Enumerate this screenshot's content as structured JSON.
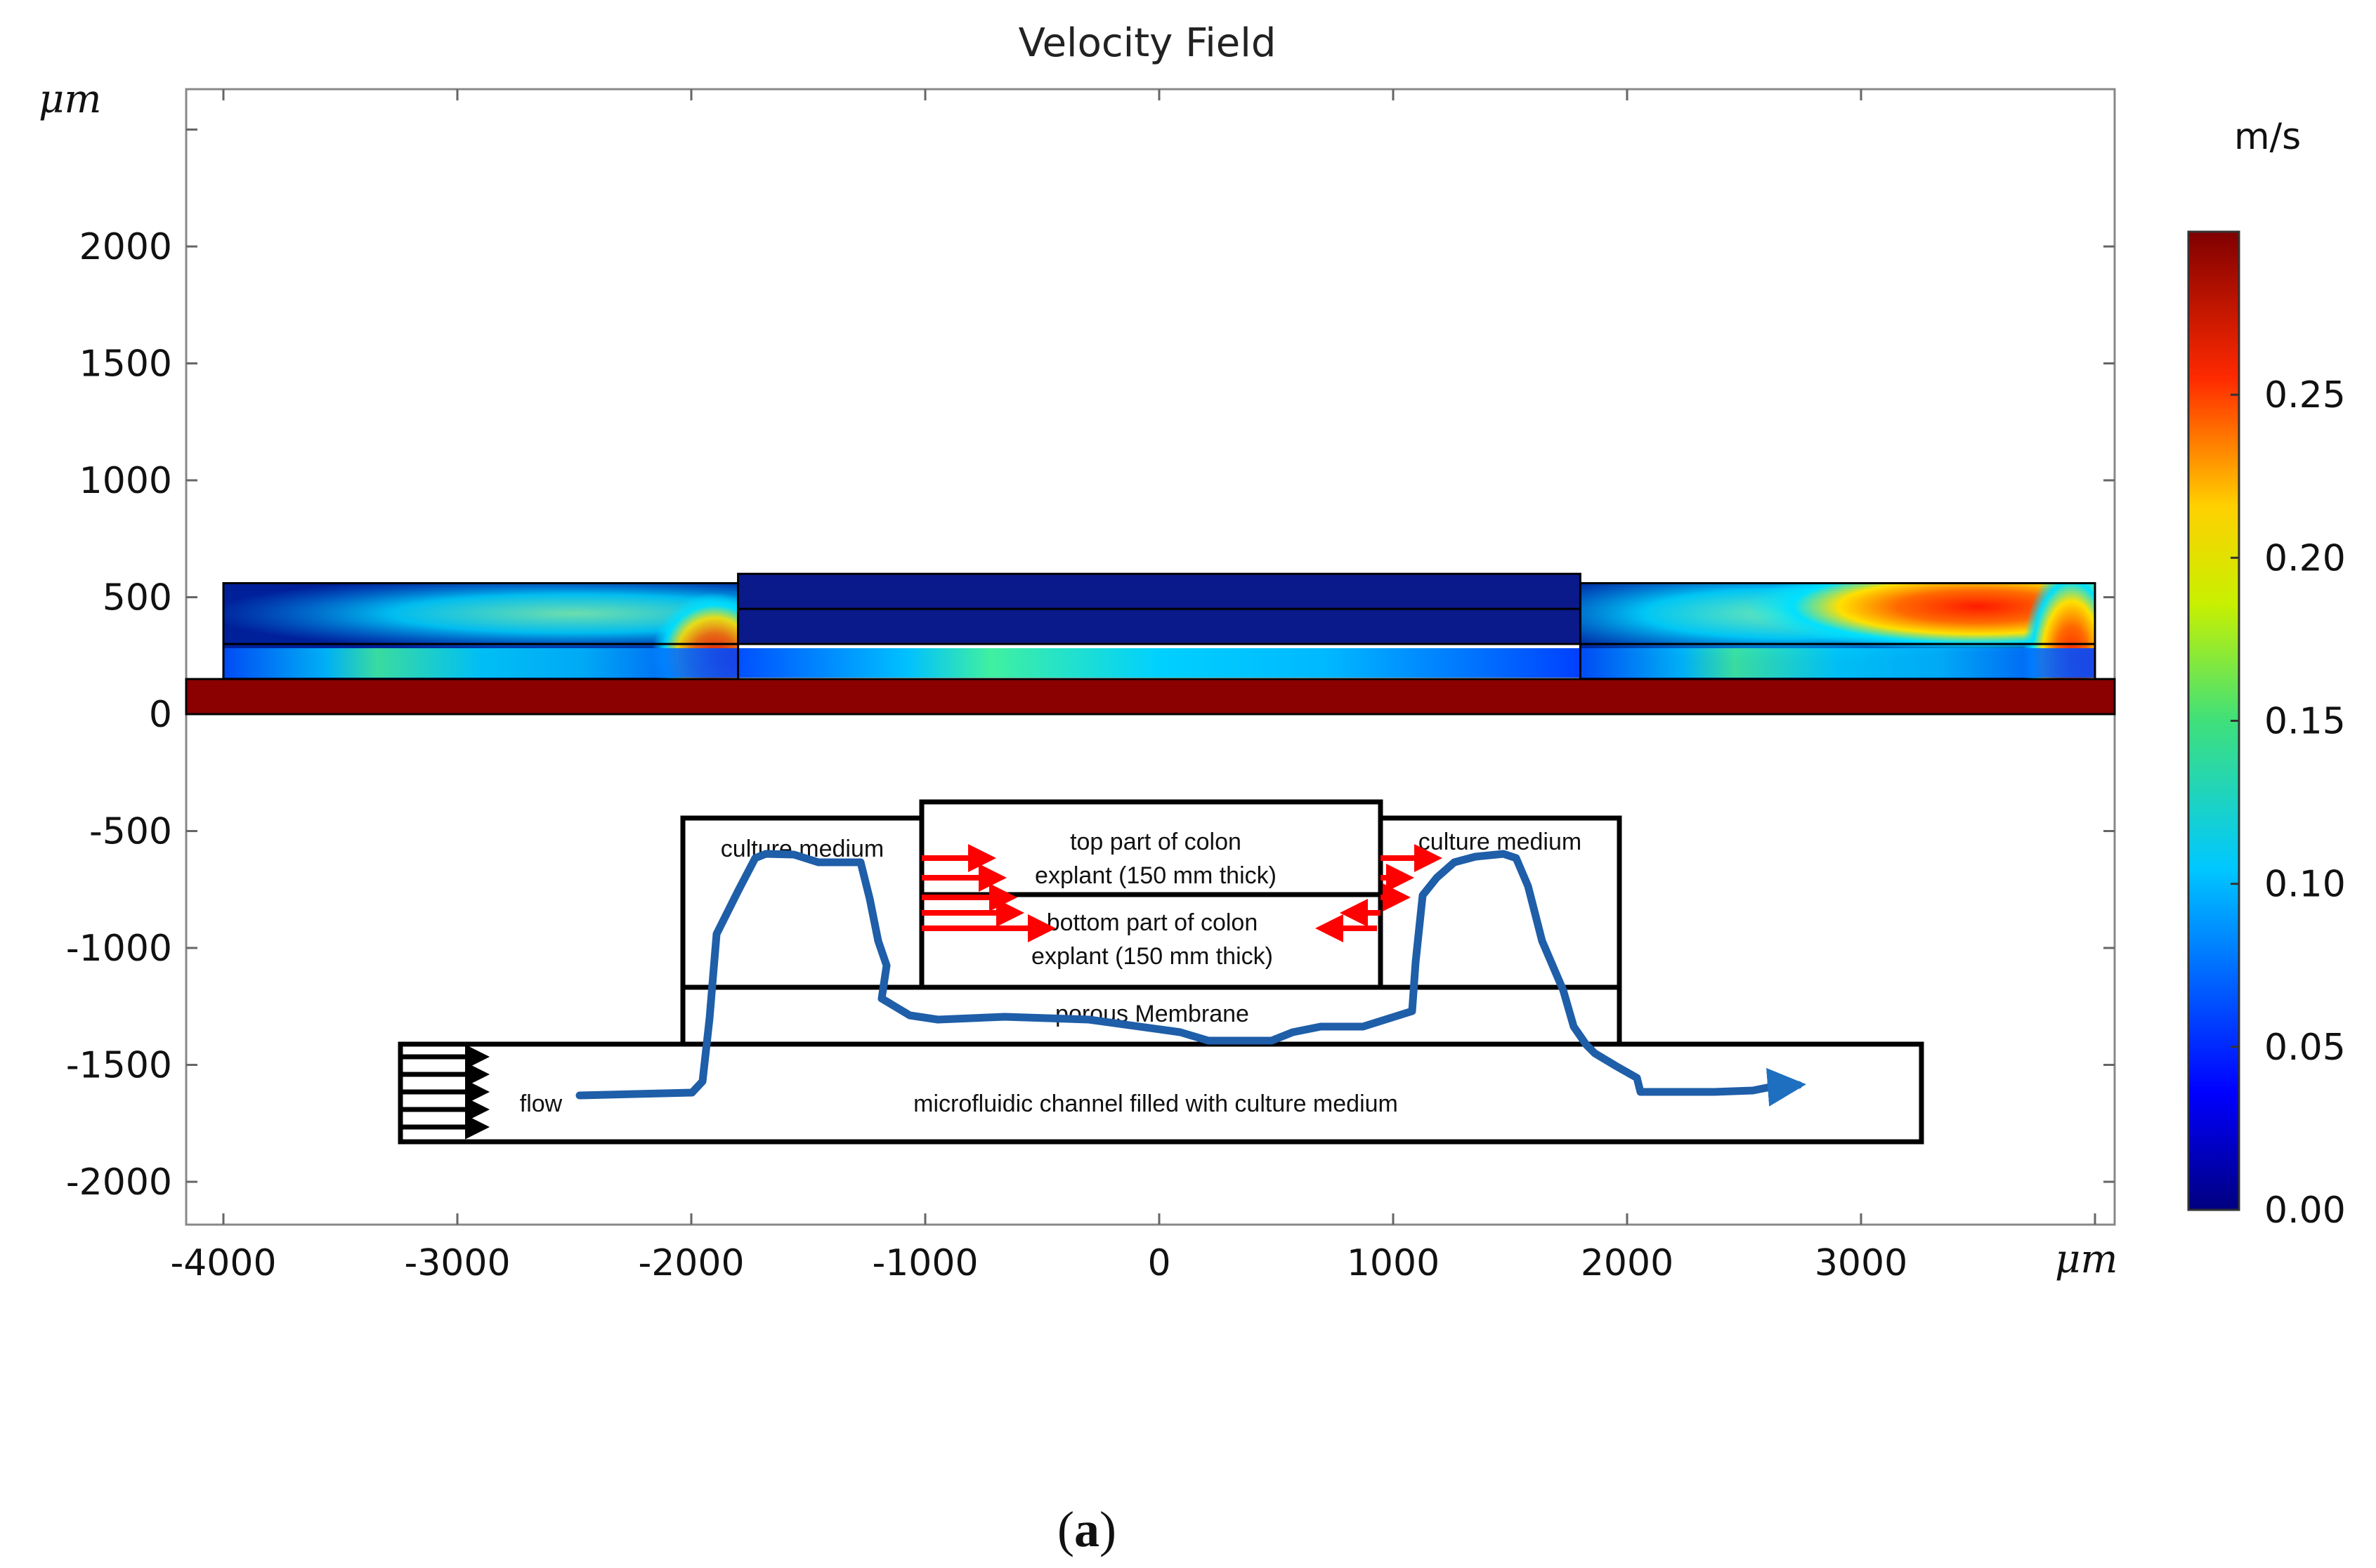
{
  "chart_data": {
    "type": "heatmap",
    "title": "Velocity Field",
    "x_unit": "μm",
    "y_unit": "μm",
    "xlim": [
      -4150,
      4150
    ],
    "ylim": [
      -2200,
      2700
    ],
    "x_ticks": [
      "-4000",
      "-3000",
      "-2000",
      "-1000",
      "0",
      "1000",
      "2000",
      "3000"
    ],
    "x_tick_values": [
      -4000,
      -3000,
      -2000,
      -1000,
      0,
      1000,
      2000,
      3000
    ],
    "y_ticks": [
      "2000",
      "1500",
      "1000",
      "500",
      "0",
      "-500",
      "-1000",
      "-1500",
      "-2000"
    ],
    "y_tick_values": [
      2000,
      1500,
      1000,
      500,
      0,
      -500,
      -1000,
      -1500,
      -2000
    ],
    "colorbar": {
      "unit": "m/s",
      "range": [
        0,
        0.3
      ],
      "tick_labels": [
        "0.25",
        "0.20",
        "0.15",
        "0.10",
        "0.05",
        "0.00"
      ],
      "tick_values": [
        0.25,
        0.2,
        0.15,
        0.1,
        0.05,
        0.0
      ],
      "colormap": "rainbow (dark blue to dark red)"
    },
    "domain_bands": [
      {
        "x": [
          -4150,
          4150
        ],
        "y": [
          0,
          150
        ],
        "fill": "#8b0000"
      }
    ],
    "explant_block": {
      "x": [
        -1800,
        1800
      ],
      "y": [
        300,
        600
      ]
    },
    "left_chamber": {
      "x": [
        -4000,
        -1800
      ],
      "y": [
        150,
        560
      ]
    },
    "right_chamber": {
      "x": [
        1800,
        4000
      ],
      "y": [
        150,
        560
      ]
    },
    "diagram": {
      "labels": {
        "culture_left": "culture medium",
        "culture_right": "culture medium",
        "top_colon_1": "top part of colon",
        "top_colon_2": "explant (150 mm thick)",
        "bottom_colon_1": "bottom part of colon",
        "bottom_colon_2": "explant (150 mm thick)",
        "membrane": "porous Membrane",
        "flow": "flow",
        "channel": "microfluidic channel filled with culture medium"
      },
      "flow_path_color": "#1f5ea8",
      "arrow_color": "#ff0000"
    }
  },
  "caption": {
    "open": "(",
    "letter": "a",
    "close": ")"
  }
}
